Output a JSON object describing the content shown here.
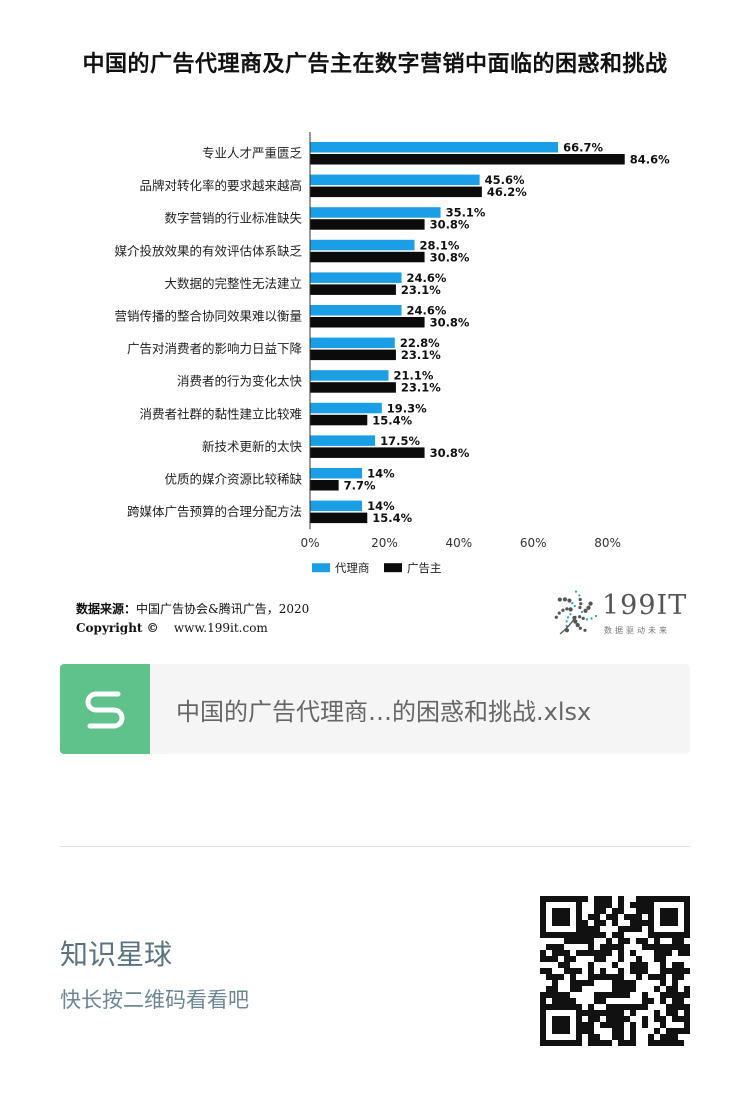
{
  "chart_data": {
    "type": "bar",
    "orientation": "horizontal",
    "title": "中国的广告代理商及广告主在数字营销中面临的困惑和挑战",
    "categories": [
      "专业人才严重匮乏",
      "品牌对转化率的要求越来越高",
      "数字营销的行业标准缺失",
      "媒介投放效果的有效评估体系缺乏",
      "大数据的完整性无法建立",
      "营销传播的整合协同效果难以衡量",
      "广告对消费者的影响力日益下降",
      "消费者的行为变化太快",
      "消费者社群的黏性建立比较难",
      "新技术更新的太快",
      "优质的媒介资源比较稀缺",
      "跨媒体广告预算的合理分配方法"
    ],
    "series": [
      {
        "name": "代理商",
        "color": "#1a9ee6",
        "values": [
          66.7,
          45.6,
          35.1,
          28.1,
          24.6,
          24.6,
          22.8,
          21.1,
          19.3,
          17.5,
          14,
          14
        ],
        "labels": [
          "66.7%",
          "45.6%",
          "35.1%",
          "28.1%",
          "24.6%",
          "24.6%",
          "22.8%",
          "21.1%",
          "19.3%",
          "17.5%",
          "14%",
          "14%"
        ]
      },
      {
        "name": "广告主",
        "color": "#0b0b0b",
        "values": [
          84.6,
          46.2,
          30.8,
          30.8,
          23.1,
          30.8,
          23.1,
          23.1,
          15.4,
          30.8,
          7.7,
          15.4
        ],
        "labels": [
          "84.6%",
          "46.2%",
          "30.8%",
          "30.8%",
          "23.1%",
          "30.8%",
          "23.1%",
          "23.1%",
          "15.4%",
          "30.8%",
          "7.7%",
          "15.4%"
        ]
      }
    ],
    "xlim": [
      0,
      85
    ],
    "xticks": [
      0,
      20,
      40,
      60,
      80
    ],
    "xtick_labels": [
      "0%",
      "20%",
      "40%",
      "60%",
      "80%"
    ],
    "legend_position": "bottom",
    "grid": false
  },
  "source": {
    "label": "数据来源：",
    "text": "中国广告协会&腾讯广告，2020",
    "copyright_label": "Copyright ©",
    "url": "www.199it.com"
  },
  "logo": {
    "name": "199IT",
    "tagline": "数据驱动未来"
  },
  "file": {
    "icon": "spreadsheet-s-icon",
    "name": "中国的广告代理商…的困惑和挑战.xlsx"
  },
  "promo": {
    "title": "知识星球",
    "subtitle": "快长按二维码看看吧",
    "icon": "qr-code"
  }
}
